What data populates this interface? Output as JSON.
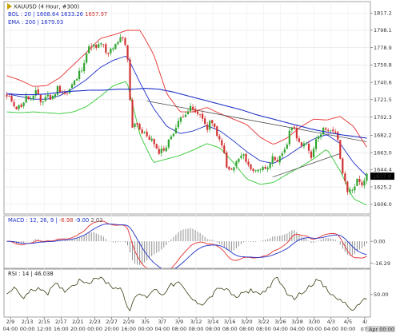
{
  "chart_data": {
    "type": "candlestick",
    "title": "XAUUSD (4 Hour, #300)",
    "colors": {
      "up": "#2fa52f",
      "down": "#d23232",
      "bollinger": "#e63030",
      "bollinger_mid": "#1e32c8",
      "ema": "#1e32c8",
      "ema_fill": "#32c832",
      "trendline": "#505050",
      "macd": "#e63030",
      "signal": "#1e32c8",
      "histogram": "#909090",
      "rsi": "#3c3c14",
      "current_price_bg": "#000000"
    },
    "legend": {
      "bol": {
        "label": "BOL : 20",
        "values": [
          "1608.64",
          "1633.26",
          "1657.97"
        ]
      },
      "ema": {
        "label": "EMA : 200",
        "value": "1679.03"
      },
      "macd": {
        "label": "MACD : 12, 26, 9",
        "values": [
          "-6.98",
          "-9.00",
          "2.02"
        ]
      },
      "rsi": {
        "label": "RSI : 14",
        "value": "46.038"
      }
    },
    "y_ticks": [
      "1817.2",
      "1798.1",
      "1778.9",
      "1759.8",
      "1740.6",
      "1721.5",
      "1702.3",
      "1682.2",
      "1663.0",
      "1644.4",
      "1625.2",
      "1606.0"
    ],
    "ylim": [
      1597,
      1828
    ],
    "current_price": "1637.0",
    "macd_ticks": [
      "0.00",
      "-16.29"
    ],
    "macd_ylim": [
      -19,
      18
    ],
    "rsi_ticks": [
      "50.00"
    ],
    "rsi_ylim": [
      22,
      82
    ],
    "x_dates": [
      "2/9",
      "2/13",
      "2/15",
      "2/17",
      "2/21",
      "2/23",
      "2/27",
      "2/29",
      "3/5",
      "3/7",
      "3/9",
      "3/12",
      "3/14",
      "3/16",
      "3/20",
      "3/22",
      "3/26",
      "3/28",
      "3/30",
      "4/3",
      "4/5",
      "4/"
    ],
    "x_times": [
      "04:00",
      "00:00",
      "12:00",
      "16:00",
      "20:00",
      "00:00",
      "20:00",
      "16:00",
      "00:00",
      "04:00",
      "08:00",
      "08:00",
      "08:00",
      "08:00",
      "08:00",
      "08:00",
      "04:00",
      "04:00",
      "00:00",
      "04:00",
      "00:00",
      "07 Apr 00:00"
    ],
    "close_anchors": [
      1724,
      1721,
      1712,
      1716,
      1725,
      1720,
      1731,
      1717,
      1728,
      1721,
      1735,
      1731,
      1727,
      1737,
      1745,
      1757,
      1774,
      1783,
      1777,
      1786,
      1768,
      1779,
      1781,
      1791,
      1778,
      1692,
      1697,
      1684,
      1682,
      1677,
      1664,
      1666,
      1670,
      1684,
      1692,
      1704,
      1709,
      1712,
      1704,
      1706,
      1687,
      1700,
      1680,
      1674,
      1645,
      1643,
      1653,
      1660,
      1655,
      1641,
      1646,
      1645,
      1648,
      1657,
      1649,
      1662,
      1672,
      1694,
      1682,
      1669,
      1672,
      1658,
      1683,
      1686,
      1692,
      1685,
      1683,
      1645,
      1620,
      1622,
      1632,
      1629,
      1637
    ],
    "ema_anchors": [
      1728,
      1727,
      1727,
      1728,
      1730,
      1731,
      1732,
      1732,
      1733,
      1733,
      1734,
      1733,
      1730,
      1726,
      1722,
      1718,
      1714,
      1710,
      1705,
      1701,
      1697,
      1693,
      1689,
      1686,
      1683,
      1681,
      1679
    ],
    "mid_anchors": [
      1728,
      1725,
      1722,
      1722,
      1726,
      1734,
      1744,
      1757,
      1765,
      1770,
      1740,
      1712,
      1692,
      1684,
      1687,
      1693,
      1687,
      1676,
      1664,
      1654,
      1651,
      1659,
      1669,
      1678,
      1683,
      1673,
      1652,
      1637
    ],
    "band_width_anchors": [
      20,
      18,
      14,
      15,
      20,
      26,
      30,
      32,
      28,
      28,
      58,
      60,
      36,
      24,
      21,
      20,
      19,
      24,
      30,
      26,
      21,
      20,
      22,
      22,
      16,
      30,
      40,
      32
    ],
    "rsi_anchors": [
      53,
      58,
      46,
      55,
      60,
      52,
      64,
      55,
      62,
      70,
      66,
      74,
      68,
      60,
      58,
      28,
      52,
      46,
      58,
      50,
      62,
      66,
      52,
      40,
      38,
      48,
      60,
      55,
      46,
      52,
      56,
      50,
      60,
      72,
      56,
      44,
      52,
      62,
      70,
      58,
      46,
      42,
      30,
      34,
      46
    ]
  }
}
